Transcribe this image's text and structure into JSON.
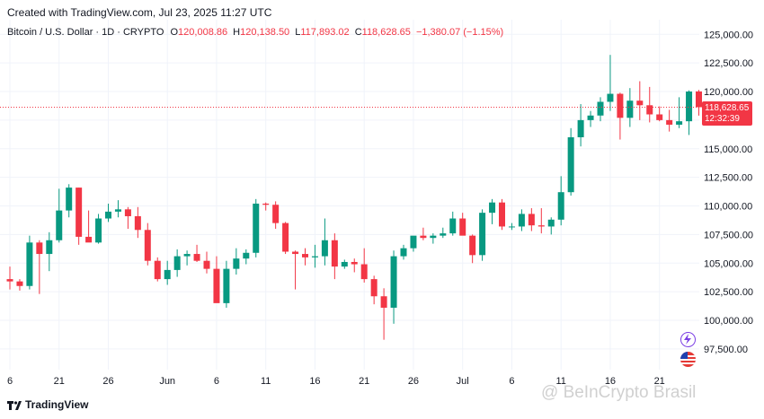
{
  "header": {
    "created": "Created with TradingView.com, Jul 23, 2025 11:27 UTC"
  },
  "legend": {
    "symbol": "Bitcoin / U.S. Dollar · 1D · CRYPTO",
    "o_label": "O",
    "o_value": "120,008.86",
    "h_label": "H",
    "h_value": "120,138.50",
    "l_label": "L",
    "l_value": "117,893.02",
    "c_label": "C",
    "c_value": "118,628.65",
    "change": "−1,380.07 (−1.15%)"
  },
  "price_tag": {
    "price": "118,628.65",
    "countdown": "12:32:39"
  },
  "footer": {
    "brand": "TradingView"
  },
  "watermark": "@ BeInCrypto Brasil",
  "colors": {
    "up": "#089981",
    "down": "#f23645",
    "grid": "#f0f3fa"
  },
  "chart_data": {
    "type": "candlestick",
    "ylim": [
      95000,
      126000
    ],
    "y_ticks": [
      97500,
      100000,
      102500,
      105000,
      107500,
      110000,
      112500,
      115000,
      117500,
      120000,
      122500,
      125000
    ],
    "y_tick_labels": [
      "97,500.00",
      "100,000.00",
      "102,500.00",
      "105,000.00",
      "107,500.00",
      "110,000.00",
      "112,500.00",
      "115,000.00",
      "117,500.00",
      "120,000.00",
      "122,500.00",
      "125,000.00"
    ],
    "x_ticks": [
      {
        "label": "6",
        "index": 0
      },
      {
        "label": "21",
        "index": 5
      },
      {
        "label": "26",
        "index": 10
      },
      {
        "label": "Jun",
        "index": 16
      },
      {
        "label": "6",
        "index": 21
      },
      {
        "label": "11",
        "index": 26
      },
      {
        "label": "16",
        "index": 31
      },
      {
        "label": "21",
        "index": 36
      },
      {
        "label": "26",
        "index": 41
      },
      {
        "label": "Jul",
        "index": 46
      },
      {
        "label": "6",
        "index": 51
      },
      {
        "label": "11",
        "index": 56
      },
      {
        "label": "16",
        "index": 61
      },
      {
        "label": "21",
        "index": 66
      }
    ],
    "last_price": 118628.65,
    "candles": [
      {
        "o": 103600,
        "h": 104700,
        "l": 102700,
        "c": 103400
      },
      {
        "o": 103400,
        "h": 103600,
        "l": 102600,
        "c": 103000
      },
      {
        "o": 103000,
        "h": 107400,
        "l": 102700,
        "c": 106800
      },
      {
        "o": 106800,
        "h": 107000,
        "l": 102300,
        "c": 105800
      },
      {
        "o": 105800,
        "h": 107700,
        "l": 104300,
        "c": 107000
      },
      {
        "o": 107000,
        "h": 111500,
        "l": 106800,
        "c": 109600
      },
      {
        "o": 109600,
        "h": 111900,
        "l": 109000,
        "c": 111600
      },
      {
        "o": 111600,
        "h": 111600,
        "l": 106600,
        "c": 107300
      },
      {
        "o": 107300,
        "h": 109600,
        "l": 106900,
        "c": 106800
      },
      {
        "o": 106800,
        "h": 109300,
        "l": 106700,
        "c": 108900
      },
      {
        "o": 108900,
        "h": 110200,
        "l": 108600,
        "c": 109500
      },
      {
        "o": 109500,
        "h": 110500,
        "l": 109000,
        "c": 109700
      },
      {
        "o": 109700,
        "h": 109900,
        "l": 108000,
        "c": 109100
      },
      {
        "o": 109100,
        "h": 109900,
        "l": 107200,
        "c": 107900
      },
      {
        "o": 107900,
        "h": 108500,
        "l": 104800,
        "c": 105200
      },
      {
        "o": 105200,
        "h": 105500,
        "l": 103400,
        "c": 103600
      },
      {
        "o": 103600,
        "h": 105200,
        "l": 103100,
        "c": 104400
      },
      {
        "o": 104400,
        "h": 106200,
        "l": 103800,
        "c": 105600
      },
      {
        "o": 105600,
        "h": 106100,
        "l": 104800,
        "c": 105800
      },
      {
        "o": 105800,
        "h": 106600,
        "l": 105100,
        "c": 105200
      },
      {
        "o": 105200,
        "h": 106000,
        "l": 104100,
        "c": 104500
      },
      {
        "o": 104500,
        "h": 105600,
        "l": 101600,
        "c": 101500
      },
      {
        "o": 101500,
        "h": 105200,
        "l": 101100,
        "c": 104500
      },
      {
        "o": 104500,
        "h": 106300,
        "l": 104000,
        "c": 105400
      },
      {
        "o": 105400,
        "h": 106200,
        "l": 104900,
        "c": 105900
      },
      {
        "o": 105900,
        "h": 110600,
        "l": 105500,
        "c": 110200
      },
      {
        "o": 110200,
        "h": 110300,
        "l": 109600,
        "c": 110100
      },
      {
        "o": 110100,
        "h": 110400,
        "l": 108000,
        "c": 108500
      },
      {
        "o": 108500,
        "h": 108600,
        "l": 105800,
        "c": 106000
      },
      {
        "o": 106000,
        "h": 106100,
        "l": 102700,
        "c": 105800
      },
      {
        "o": 105800,
        "h": 106300,
        "l": 104800,
        "c": 105500
      },
      {
        "o": 105500,
        "h": 106600,
        "l": 104600,
        "c": 105600
      },
      {
        "o": 105600,
        "h": 108900,
        "l": 104800,
        "c": 107000
      },
      {
        "o": 107000,
        "h": 107600,
        "l": 103600,
        "c": 104700
      },
      {
        "o": 104700,
        "h": 105300,
        "l": 104500,
        "c": 105100
      },
      {
        "o": 105100,
        "h": 105400,
        "l": 104200,
        "c": 104900
      },
      {
        "o": 104900,
        "h": 106300,
        "l": 103300,
        "c": 103600
      },
      {
        "o": 103600,
        "h": 103900,
        "l": 101400,
        "c": 102100
      },
      {
        "o": 102100,
        "h": 102800,
        "l": 98300,
        "c": 101100
      },
      {
        "o": 101100,
        "h": 106100,
        "l": 99700,
        "c": 105600
      },
      {
        "o": 105600,
        "h": 106600,
        "l": 105300,
        "c": 106300
      },
      {
        "o": 106300,
        "h": 107300,
        "l": 106000,
        "c": 107400
      },
      {
        "o": 107400,
        "h": 108100,
        "l": 107000,
        "c": 107200
      },
      {
        "o": 107200,
        "h": 107600,
        "l": 106700,
        "c": 107400
      },
      {
        "o": 107400,
        "h": 108100,
        "l": 107200,
        "c": 107600
      },
      {
        "o": 107600,
        "h": 109500,
        "l": 107400,
        "c": 108900
      },
      {
        "o": 108900,
        "h": 109400,
        "l": 107500,
        "c": 107400
      },
      {
        "o": 107400,
        "h": 107500,
        "l": 105000,
        "c": 105700
      },
      {
        "o": 105700,
        "h": 109700,
        "l": 105200,
        "c": 109400
      },
      {
        "o": 109400,
        "h": 110600,
        "l": 108400,
        "c": 110300
      },
      {
        "o": 110300,
        "h": 110600,
        "l": 107900,
        "c": 108200
      },
      {
        "o": 108200,
        "h": 108500,
        "l": 107900,
        "c": 108200
      },
      {
        "o": 108200,
        "h": 109700,
        "l": 107800,
        "c": 109300
      },
      {
        "o": 109300,
        "h": 109800,
        "l": 107800,
        "c": 108300
      },
      {
        "o": 108300,
        "h": 109800,
        "l": 107600,
        "c": 108200
      },
      {
        "o": 108200,
        "h": 109000,
        "l": 107500,
        "c": 108800
      },
      {
        "o": 108800,
        "h": 112600,
        "l": 108300,
        "c": 111200
      },
      {
        "o": 111200,
        "h": 116800,
        "l": 110900,
        "c": 116000
      },
      {
        "o": 116000,
        "h": 118900,
        "l": 115200,
        "c": 117500
      },
      {
        "o": 117500,
        "h": 118300,
        "l": 116900,
        "c": 117900
      },
      {
        "o": 117900,
        "h": 119500,
        "l": 117400,
        "c": 119100
      },
      {
        "o": 119100,
        "h": 123200,
        "l": 118300,
        "c": 119800
      },
      {
        "o": 119800,
        "h": 119900,
        "l": 115800,
        "c": 117700
      },
      {
        "o": 117700,
        "h": 120300,
        "l": 116900,
        "c": 119200
      },
      {
        "o": 119200,
        "h": 120900,
        "l": 117500,
        "c": 118800
      },
      {
        "o": 118800,
        "h": 120400,
        "l": 117300,
        "c": 118000
      },
      {
        "o": 118000,
        "h": 118700,
        "l": 117400,
        "c": 117500
      },
      {
        "o": 117500,
        "h": 118400,
        "l": 116500,
        "c": 117100
      },
      {
        "o": 117100,
        "h": 119500,
        "l": 116800,
        "c": 117400
      },
      {
        "o": 117400,
        "h": 120100,
        "l": 116200,
        "c": 120000
      },
      {
        "o": 120008.86,
        "h": 120138.5,
        "l": 117893.02,
        "c": 118628.65
      }
    ]
  }
}
